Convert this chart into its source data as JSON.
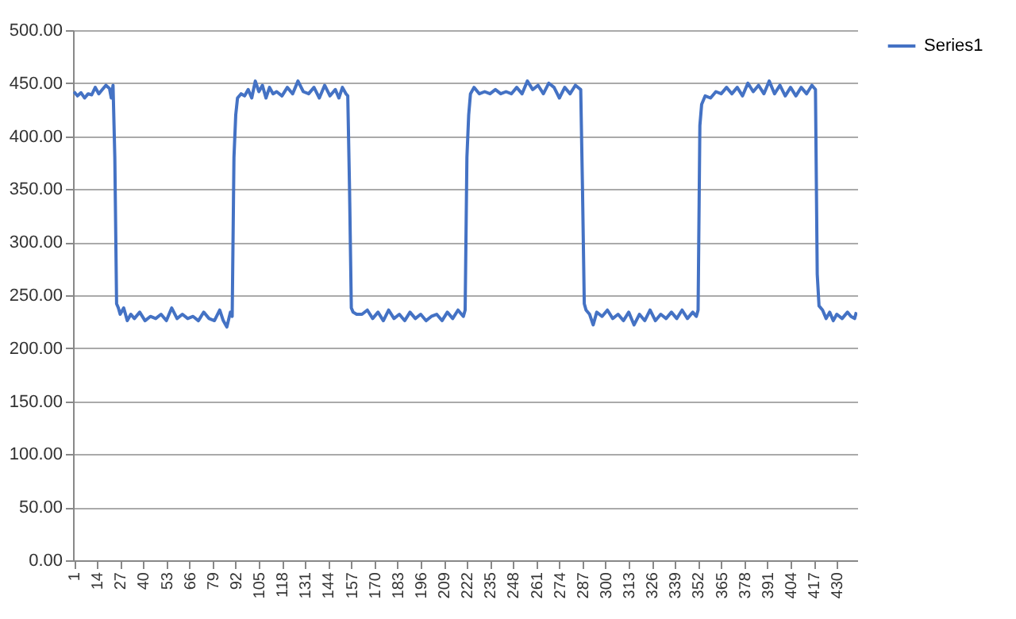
{
  "chart_data": {
    "type": "line",
    "legend": "right",
    "grid": "y",
    "marker": "none",
    "line_style": "solid",
    "xlim": [
      0.5,
      441.5
    ],
    "xticks": [
      1,
      14,
      27,
      40,
      53,
      66,
      79,
      92,
      105,
      118,
      131,
      144,
      157,
      170,
      183,
      196,
      209,
      222,
      235,
      248,
      261,
      274,
      287,
      300,
      313,
      326,
      339,
      352,
      365,
      378,
      391,
      404,
      417,
      430
    ],
    "ylim": [
      0,
      500
    ],
    "yticks": [
      {
        "value": 0,
        "label": "0.00"
      },
      {
        "value": 50,
        "label": "50.00"
      },
      {
        "value": 100,
        "label": "100.00"
      },
      {
        "value": 150,
        "label": "150.00"
      },
      {
        "value": 200,
        "label": "200.00"
      },
      {
        "value": 250,
        "label": "250.00"
      },
      {
        "value": 300,
        "label": "300.00"
      },
      {
        "value": 350,
        "label": "350.00"
      },
      {
        "value": 400,
        "label": "400.00"
      },
      {
        "value": 450,
        "label": "450.00"
      },
      {
        "value": 500,
        "label": "500.00"
      }
    ],
    "series": [
      {
        "name": "Series1",
        "color": "#4472c4",
        "x": [
          1,
          3,
          5,
          7,
          9,
          11,
          13,
          15,
          17,
          19,
          21,
          22,
          23,
          24,
          25,
          26,
          27,
          29,
          31,
          33,
          35,
          38,
          41,
          44,
          47,
          50,
          53,
          56,
          59,
          62,
          65,
          68,
          71,
          74,
          77,
          80,
          83,
          85,
          87,
          89,
          90,
          91,
          92,
          93,
          95,
          97,
          99,
          101,
          103,
          105,
          107,
          109,
          111,
          113,
          115,
          118,
          121,
          124,
          127,
          130,
          133,
          136,
          139,
          142,
          145,
          148,
          150,
          152,
          154,
          155,
          156,
          157,
          158,
          160,
          163,
          166,
          169,
          172,
          175,
          178,
          181,
          184,
          187,
          190,
          193,
          196,
          199,
          202,
          205,
          208,
          211,
          214,
          217,
          220,
          221,
          222,
          223,
          224,
          226,
          229,
          232,
          235,
          238,
          241,
          244,
          247,
          250,
          253,
          256,
          259,
          262,
          265,
          268,
          271,
          274,
          277,
          280,
          283,
          286,
          287,
          288,
          289,
          291,
          293,
          295,
          298,
          301,
          304,
          307,
          310,
          313,
          316,
          319,
          322,
          325,
          328,
          331,
          334,
          337,
          340,
          343,
          346,
          349,
          351,
          352,
          353,
          354,
          356,
          359,
          362,
          365,
          368,
          371,
          374,
          377,
          380,
          383,
          386,
          389,
          392,
          395,
          398,
          401,
          404,
          407,
          410,
          413,
          416,
          418,
          419,
          420,
          422,
          424,
          426,
          428,
          430,
          433,
          436,
          438,
          440,
          441
        ],
        "values": [
          442,
          438,
          441,
          436,
          440,
          439,
          446,
          440,
          444,
          448,
          445,
          436,
          448,
          380,
          242,
          238,
          232,
          238,
          226,
          232,
          228,
          234,
          226,
          230,
          228,
          232,
          226,
          238,
          228,
          232,
          228,
          230,
          226,
          234,
          228,
          226,
          236,
          226,
          220,
          234,
          230,
          380,
          420,
          436,
          440,
          438,
          444,
          436,
          452,
          442,
          448,
          436,
          446,
          440,
          442,
          438,
          446,
          440,
          452,
          442,
          440,
          446,
          436,
          448,
          438,
          444,
          436,
          446,
          440,
          438,
          350,
          238,
          234,
          232,
          232,
          236,
          228,
          234,
          226,
          236,
          228,
          232,
          226,
          234,
          228,
          232,
          226,
          230,
          232,
          226,
          234,
          228,
          236,
          230,
          236,
          380,
          420,
          440,
          446,
          440,
          442,
          440,
          444,
          440,
          442,
          440,
          446,
          440,
          452,
          444,
          448,
          440,
          450,
          446,
          436,
          446,
          440,
          448,
          444,
          350,
          242,
          236,
          232,
          222,
          234,
          230,
          236,
          228,
          232,
          226,
          234,
          222,
          232,
          226,
          236,
          226,
          232,
          228,
          234,
          228,
          236,
          228,
          234,
          230,
          236,
          410,
          430,
          438,
          436,
          442,
          440,
          446,
          440,
          446,
          438,
          450,
          442,
          448,
          440,
          452,
          440,
          448,
          438,
          446,
          438,
          446,
          440,
          448,
          444,
          270,
          240,
          236,
          228,
          234,
          226,
          232,
          228,
          234,
          230,
          228,
          234
        ]
      }
    ]
  }
}
